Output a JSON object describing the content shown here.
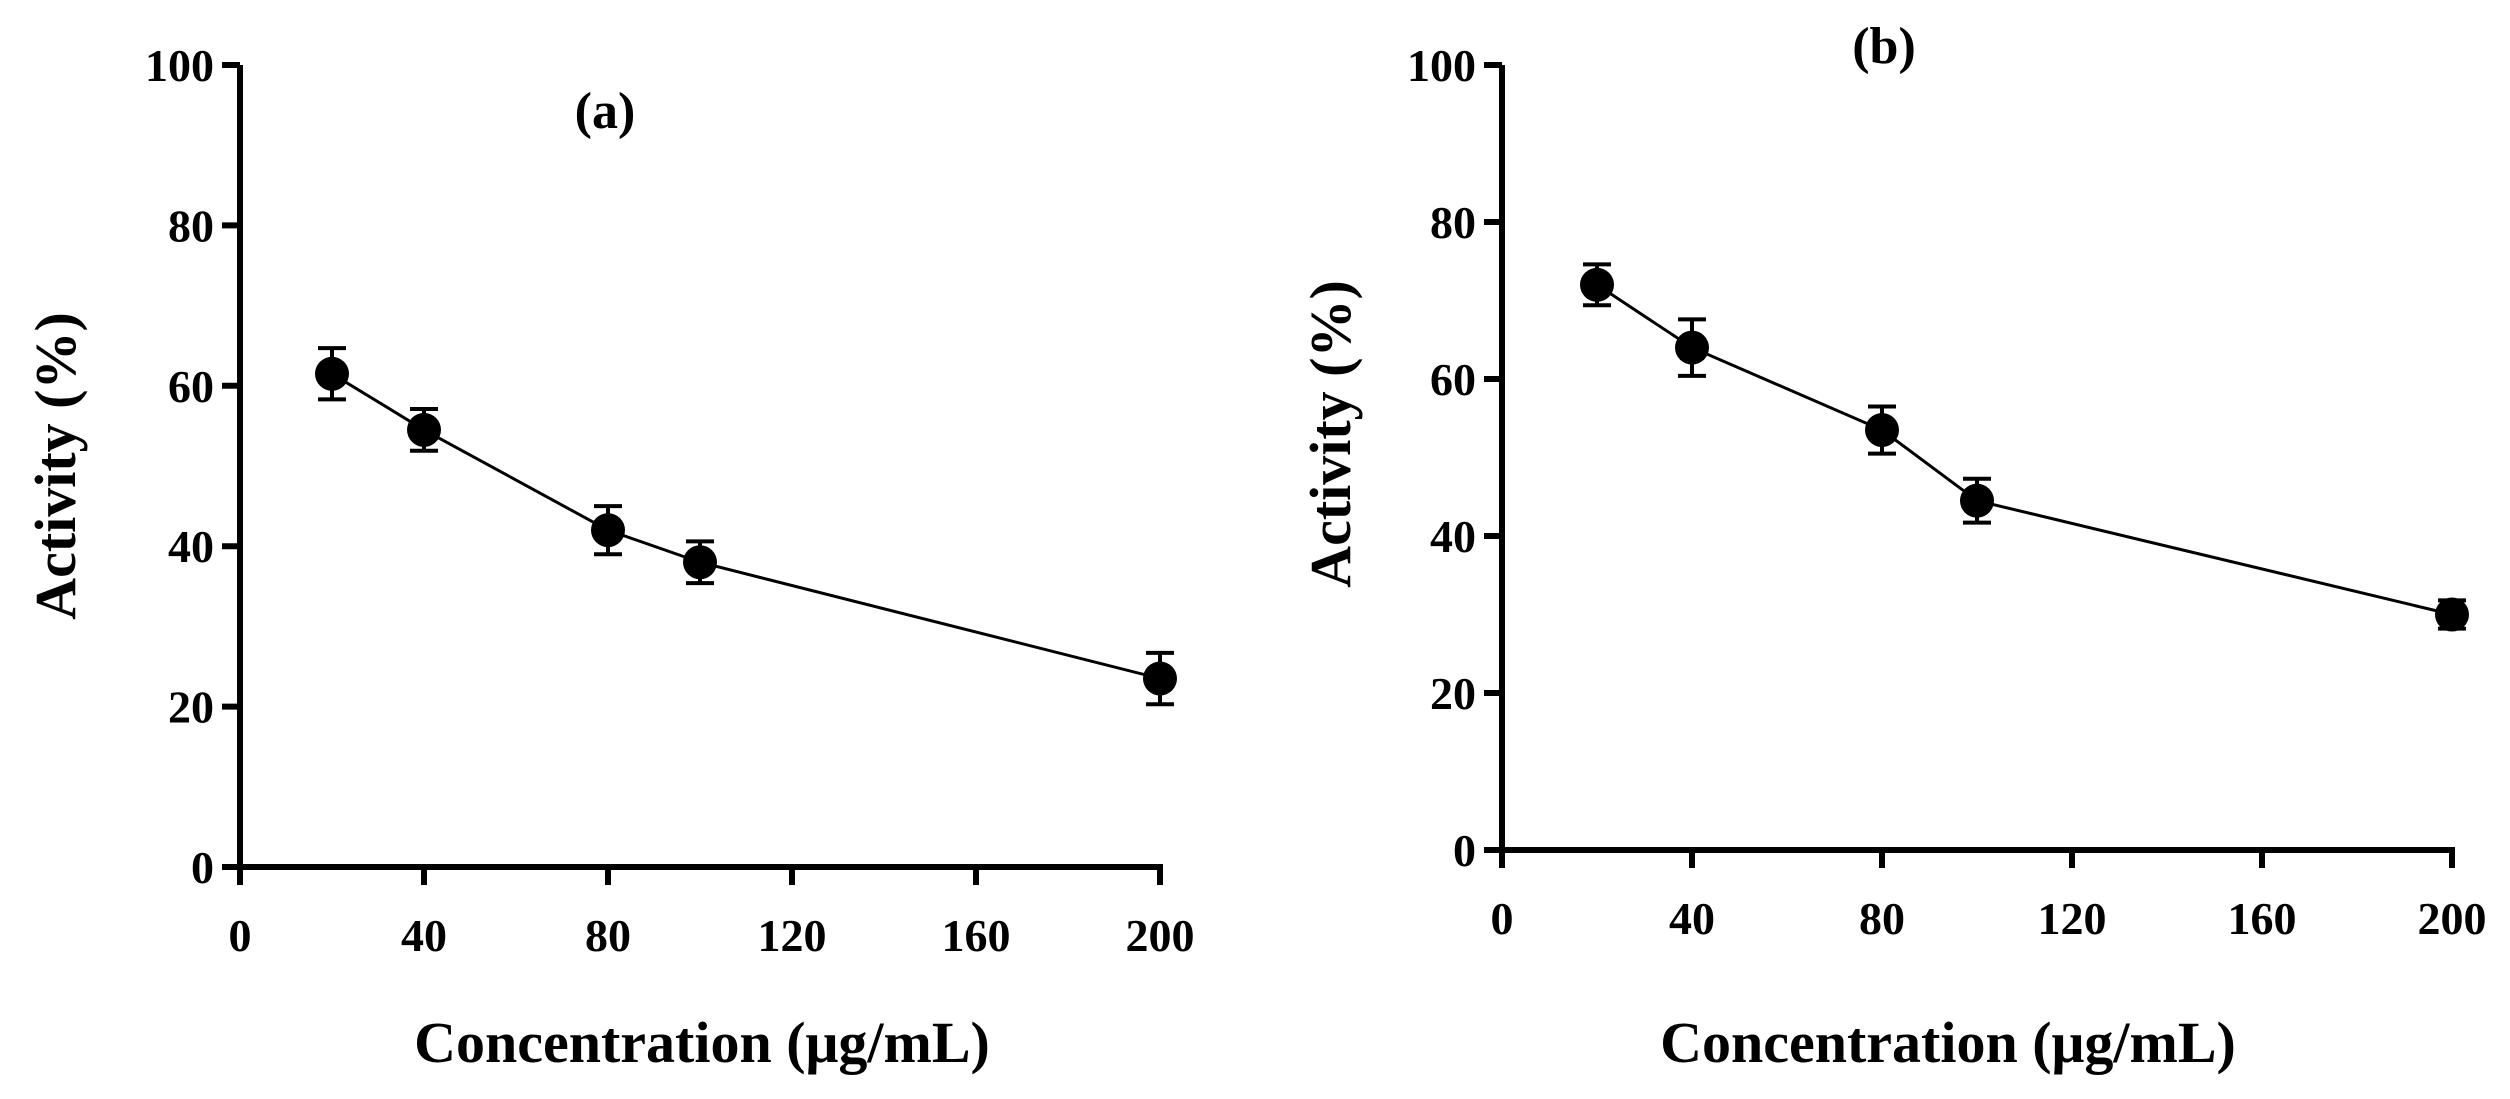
{
  "chart_data": [
    {
      "type": "line",
      "panel_label": "(a)",
      "xlabel": "Concentration (μg/mL)",
      "ylabel": "Activity (%)",
      "x": [
        20,
        40,
        80,
        100,
        200
      ],
      "values": [
        61.5,
        54.5,
        42,
        38,
        23.5
      ],
      "errors": [
        3.2,
        2.6,
        3.0,
        2.6,
        3.2
      ],
      "xlim": [
        0,
        200
      ],
      "ylim": [
        0,
        100
      ],
      "xticks": [
        0,
        40,
        80,
        120,
        160,
        200
      ],
      "yticks": [
        0,
        20,
        40,
        60,
        80,
        100
      ],
      "xtick_labels": [
        "0",
        "40",
        "80",
        "120",
        "160",
        "200"
      ],
      "ytick_labels": [
        "0",
        "20",
        "40",
        "60",
        "80",
        "100"
      ],
      "grid": false
    },
    {
      "type": "line",
      "panel_label": "(b)",
      "xlabel": "Concentration (μg/mL)",
      "ylabel": "Activity (%)",
      "x": [
        20,
        40,
        80,
        100,
        200
      ],
      "values": [
        72,
        64,
        53.5,
        44.5,
        30
      ],
      "errors": [
        2.6,
        3.6,
        3.0,
        2.8,
        1.8
      ],
      "xlim": [
        0,
        200
      ],
      "ylim": [
        0,
        100
      ],
      "xticks": [
        0,
        40,
        80,
        120,
        160,
        200
      ],
      "yticks": [
        0,
        20,
        40,
        60,
        80,
        100
      ],
      "xtick_labels": [
        "0",
        "40",
        "80",
        "120",
        "160",
        "200"
      ],
      "ytick_labels": [
        "0",
        "20",
        "40",
        "60",
        "80",
        "100"
      ],
      "grid": false
    }
  ]
}
